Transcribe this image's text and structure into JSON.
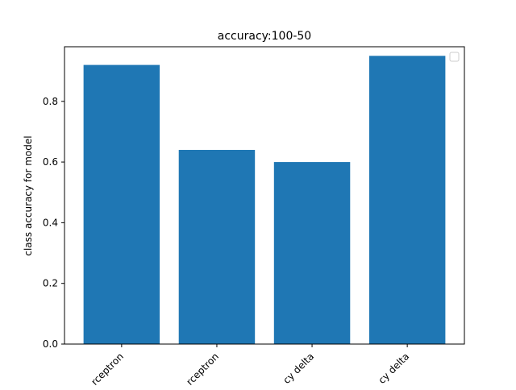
{
  "chart_data": {
    "type": "bar",
    "title": "accuracy:100-50",
    "xlabel": "",
    "ylabel": "class accuracy for model",
    "categories": [
      "rceptron",
      "rceptron",
      "cy delta",
      "cy delta"
    ],
    "values": [
      0.92,
      0.64,
      0.6,
      0.95
    ],
    "ylim": [
      0,
      0.98
    ],
    "yticks": [
      0.0,
      0.2,
      0.4,
      0.6,
      0.8
    ],
    "grid": false,
    "legend": "top-right",
    "bar_color": "#1f77b4"
  }
}
